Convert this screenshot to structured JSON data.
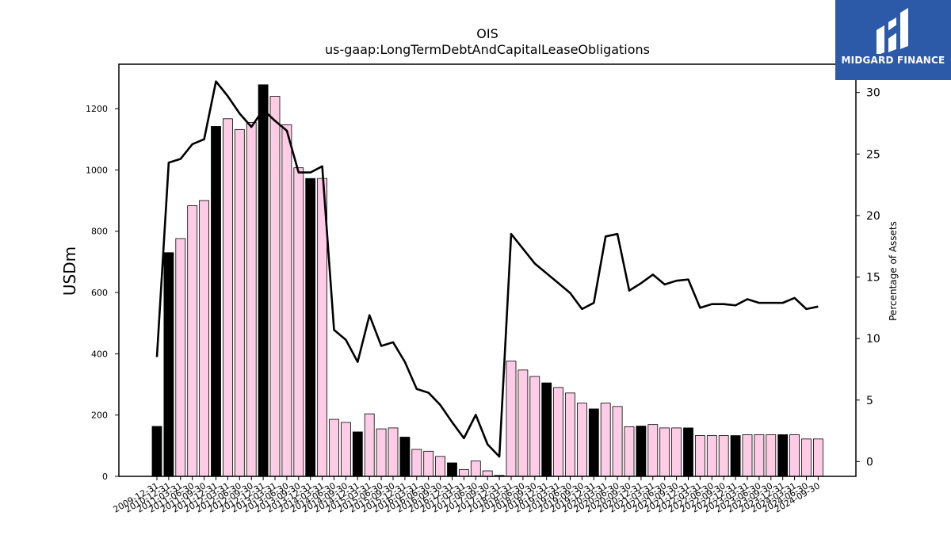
{
  "chart_data": {
    "type": "bar",
    "title": "OIS",
    "subtitle": "us-gaap:LongTermDebtAndCapitalLeaseObligations",
    "ylabel": "USDm",
    "y2label": "Percentage of Assets",
    "ylim": [
      0,
      1345
    ],
    "y2lim": [
      -1.2,
      32.3
    ],
    "yticks": [
      0,
      200,
      400,
      600,
      800,
      1000,
      1200
    ],
    "y2ticks": [
      0,
      5,
      10,
      15,
      20,
      25,
      30
    ],
    "colors": {
      "annual": "#000000",
      "quarterly": "#ffcce6",
      "line": "#000000"
    },
    "categories": [
      "2009-12-31",
      "2010-12-31",
      "2011-03-31",
      "2011-06-30",
      "2011-09-30",
      "2011-12-31",
      "2012-03-31",
      "2012-06-30",
      "2012-09-30",
      "2012-12-31",
      "2013-03-31",
      "2013-06-30",
      "2013-09-30",
      "2013-12-31",
      "2014-03-31",
      "2014-06-30",
      "2014-09-30",
      "2014-12-31",
      "2015-03-31",
      "2015-06-30",
      "2015-09-30",
      "2015-12-31",
      "2016-03-31",
      "2016-06-30",
      "2016-09-30",
      "2016-12-31",
      "2017-03-31",
      "2017-06-30",
      "2017-09-30",
      "2017-12-31",
      "2018-03-31",
      "2018-06-30",
      "2018-09-30",
      "2018-12-31",
      "2019-03-31",
      "2019-06-30",
      "2019-09-30",
      "2019-12-31",
      "2020-03-31",
      "2020-06-30",
      "2020-09-30",
      "2020-12-31",
      "2021-03-31",
      "2021-06-30",
      "2021-09-30",
      "2021-12-31",
      "2022-03-31",
      "2022-06-30",
      "2022-09-30",
      "2022-12-31",
      "2023-03-31",
      "2023-06-30",
      "2023-09-30",
      "2023-12-31",
      "2024-03-31",
      "2024-06-30",
      "2024-09-30"
    ],
    "values": [
      163,
      730,
      776,
      883,
      900,
      1142,
      1167,
      1132,
      1155,
      1278,
      1240,
      1147,
      1007,
      972,
      972,
      186,
      176,
      145,
      204,
      155,
      158,
      128,
      88,
      82,
      65,
      44,
      22,
      50,
      18,
      3,
      376,
      347,
      326,
      305,
      290,
      272,
      239,
      220,
      239,
      228,
      162,
      164,
      169,
      158,
      158,
      158,
      133,
      133,
      133,
      133,
      136,
      136,
      136,
      136,
      136,
      122,
      122
    ],
    "annual": [
      1,
      1,
      0,
      0,
      0,
      1,
      0,
      0,
      0,
      1,
      0,
      0,
      0,
      1,
      0,
      0,
      0,
      1,
      0,
      0,
      0,
      1,
      0,
      0,
      0,
      1,
      0,
      0,
      0,
      1,
      0,
      0,
      0,
      1,
      0,
      0,
      0,
      1,
      0,
      0,
      0,
      1,
      0,
      0,
      0,
      1,
      0,
      0,
      0,
      1,
      0,
      0,
      0,
      1,
      0,
      0,
      0
    ],
    "percent": [
      8.5,
      24.3,
      24.6,
      25.8,
      26.2,
      30.9,
      29.7,
      28.3,
      27.2,
      28.6,
      27.7,
      26.9,
      23.5,
      23.5,
      24.0,
      10.7,
      9.9,
      8.1,
      11.9,
      9.4,
      9.7,
      8.1,
      5.9,
      5.6,
      4.6,
      3.2,
      1.9,
      3.8,
      1.4,
      0.4,
      18.5,
      17.3,
      16.1,
      15.3,
      14.5,
      13.7,
      12.4,
      12.9,
      18.3,
      18.5,
      13.9,
      14.5,
      15.2,
      14.4,
      14.7,
      14.8,
      12.5,
      12.8,
      12.8,
      12.7,
      13.2,
      12.9,
      12.9,
      12.9,
      13.3,
      12.4,
      12.6
    ]
  },
  "logo": {
    "name": "MIDGARD FINANCE",
    "icon": "midgard-logo-icon"
  }
}
